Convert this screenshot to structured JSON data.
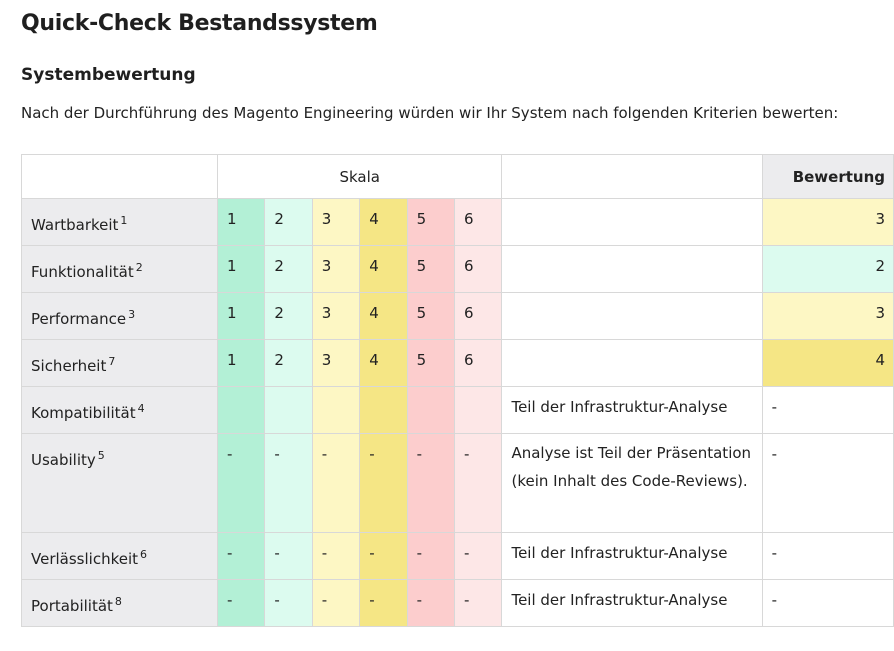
{
  "title": "Quick-Check Bestandssystem",
  "subtitle": "Systembewertung",
  "intro": "Nach der Durchführung des Magento Engineering würden wir Ihr System nach folgenden Kriterien bewerten:",
  "table": {
    "header_scale": "Skala",
    "header_rating": "Bewertung",
    "scale_colors": [
      "#b3f0d6",
      "#dcfbef",
      "#fdf7c4",
      "#f5e685",
      "#fccdcd",
      "#fde7e7"
    ],
    "rows": [
      {
        "criterion": "Wartbarkeit",
        "footnote": "1",
        "scale": [
          "1",
          "2",
          "3",
          "4",
          "5",
          "6"
        ],
        "note": "",
        "rating": "3"
      },
      {
        "criterion": "Funktionalität",
        "footnote": "2",
        "scale": [
          "1",
          "2",
          "3",
          "4",
          "5",
          "6"
        ],
        "note": "",
        "rating": "2"
      },
      {
        "criterion": "Performance",
        "footnote": "3",
        "scale": [
          "1",
          "2",
          "3",
          "4",
          "5",
          "6"
        ],
        "note": "",
        "rating": "3"
      },
      {
        "criterion": "Sicherheit",
        "footnote": "7",
        "scale": [
          "1",
          "2",
          "3",
          "4",
          "5",
          "6"
        ],
        "note": "",
        "rating": "4"
      },
      {
        "criterion": "Kompatibilität",
        "footnote": "4",
        "scale": [
          "",
          "",
          "",
          "",
          "",
          ""
        ],
        "note": "Teil der Infrastruktur-Analyse",
        "rating": "-"
      },
      {
        "criterion": "Usability",
        "footnote": "5",
        "scale": [
          "-",
          "-",
          "-",
          "-",
          "-",
          "-"
        ],
        "note": "Analyse ist Teil der Präsentation (kein Inhalt des Code-Reviews).",
        "rating": "-"
      },
      {
        "criterion": "Verlässlichkeit",
        "footnote": "6",
        "scale": [
          "-",
          "-",
          "-",
          "-",
          "-",
          "-"
        ],
        "note": "Teil der Infrastruktur-Analyse",
        "rating": "-"
      },
      {
        "criterion": "Portabilität",
        "footnote": "8",
        "scale": [
          "-",
          "-",
          "-",
          "-",
          "-",
          "-"
        ],
        "note": "Teil der Infrastruktur-Analyse",
        "rating": "-"
      }
    ]
  }
}
